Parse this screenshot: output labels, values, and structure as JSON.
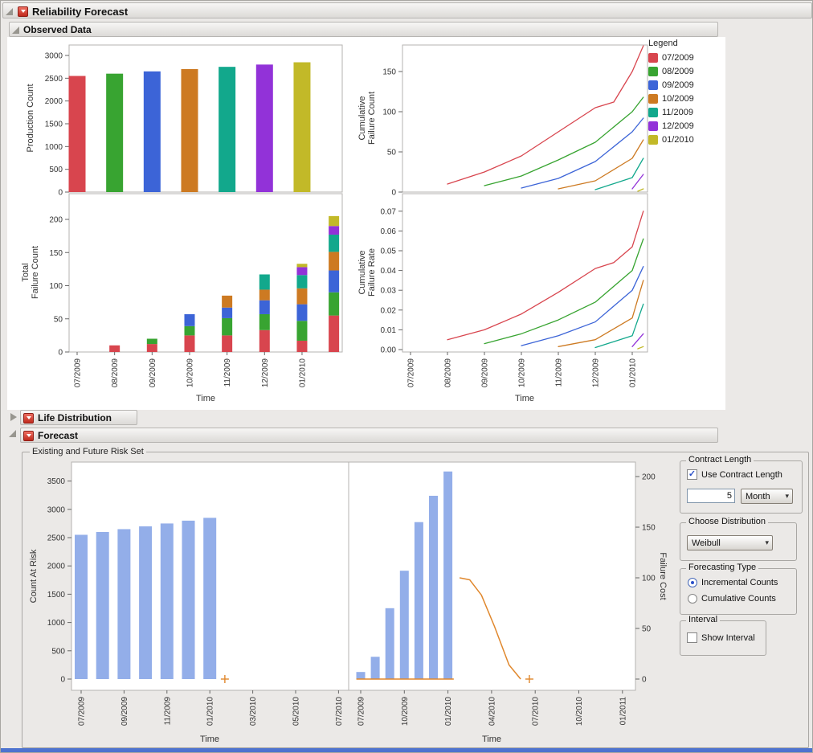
{
  "window": {
    "title": "Reliability Forecast",
    "bottom_bar_color": "#4e73cf"
  },
  "headers": {
    "reliability": "Reliability Forecast",
    "observed": "Observed Data",
    "life": "Life Distribution",
    "forecast": "Forecast",
    "risk_set": "Existing and Future Risk Set"
  },
  "icons": {
    "checkmark": "✓",
    "dropdown_arrow": "▾"
  },
  "legend": {
    "title": "Legend",
    "entries": [
      {
        "label": "07/2009",
        "color": "#d8454e"
      },
      {
        "label": "08/2009",
        "color": "#38a431"
      },
      {
        "label": "09/2009",
        "color": "#3c64d7"
      },
      {
        "label": "10/2009",
        "color": "#cd7a22"
      },
      {
        "label": "11/2009",
        "color": "#12a88c"
      },
      {
        "label": "12/2009",
        "color": "#9232d8"
      },
      {
        "label": "01/2010",
        "color": "#c2b928"
      }
    ]
  },
  "controls": {
    "contract": {
      "title": "Contract Length",
      "checkbox_label": "Use Contract Length",
      "checked": true,
      "value": "5",
      "unit": "Month"
    },
    "distribution": {
      "title": "Choose Distribution",
      "value": "Weibull"
    },
    "forecast_type": {
      "title": "Forecasting Type",
      "options": [
        {
          "label": "Incremental Counts",
          "selected": true
        },
        {
          "label": "Cumulative Counts",
          "selected": false
        }
      ]
    },
    "interval": {
      "title": "Interval",
      "checkbox_label": "Show Interval",
      "checked": false
    }
  },
  "chart_data": [
    {
      "id": "production-count",
      "type": "bar",
      "ylabel": "Production Count",
      "categories": [
        "07/2009",
        "08/2009",
        "09/2009",
        "10/2009",
        "11/2009",
        "12/2009",
        "01/2010"
      ],
      "values": [
        2550,
        2600,
        2650,
        2700,
        2750,
        2800,
        2850
      ],
      "colors": [
        "#d8454e",
        "#38a431",
        "#3c64d7",
        "#cd7a22",
        "#12a88c",
        "#9232d8",
        "#c2b928"
      ],
      "ylim": [
        0,
        3230
      ],
      "yticks": [
        {
          "v": 0,
          "label": "0"
        },
        {
          "v": 500,
          "label": "500"
        },
        {
          "v": 1000,
          "label": "1000"
        },
        {
          "v": 1500,
          "label": "1500"
        },
        {
          "v": 2000,
          "label": "2000"
        },
        {
          "v": 2500,
          "label": "2500"
        },
        {
          "v": 3000,
          "label": "3000"
        }
      ]
    },
    {
      "id": "cumulative-failure-count",
      "type": "line",
      "ylabel_lines": [
        "Cumulative",
        "Failure Count"
      ],
      "xlabel": "Time",
      "ylim": [
        0,
        183
      ],
      "yticks": [
        {
          "v": 0,
          "label": "0"
        },
        {
          "v": 50,
          "label": "50"
        },
        {
          "v": 100,
          "label": "100"
        },
        {
          "v": 150,
          "label": "150"
        }
      ],
      "xticks": [
        {
          "pos": 0,
          "label": "07/2009"
        },
        {
          "pos": 1,
          "label": "08/2009"
        },
        {
          "pos": 2,
          "label": "09/2009"
        },
        {
          "pos": 3,
          "label": "10/2009"
        },
        {
          "pos": 4,
          "label": "11/2009"
        },
        {
          "pos": 5,
          "label": "12/2009"
        },
        {
          "pos": 6,
          "label": "01/2010"
        }
      ],
      "series": [
        {
          "name": "07/2009",
          "color": "#d8454e",
          "x": [
            1,
            2,
            3,
            4,
            5,
            5.5,
            6,
            6.3
          ],
          "y": [
            10,
            25,
            45,
            75,
            105,
            112,
            150,
            182
          ]
        },
        {
          "name": "08/2009",
          "color": "#38a431",
          "x": [
            2,
            3,
            4,
            5,
            6,
            6.3
          ],
          "y": [
            8,
            20,
            40,
            62,
            100,
            118
          ]
        },
        {
          "name": "09/2009",
          "color": "#3c64d7",
          "x": [
            3,
            4,
            5,
            6,
            6.3
          ],
          "y": [
            5,
            17,
            38,
            75,
            92
          ]
        },
        {
          "name": "10/2009",
          "color": "#cd7a22",
          "x": [
            4,
            5,
            6,
            6.3
          ],
          "y": [
            4,
            14,
            42,
            65
          ]
        },
        {
          "name": "11/2009",
          "color": "#12a88c",
          "x": [
            5,
            6,
            6.3
          ],
          "y": [
            3,
            18,
            42
          ]
        },
        {
          "name": "12/2009",
          "color": "#9232d8",
          "x": [
            6,
            6.3
          ],
          "y": [
            4,
            22
          ]
        },
        {
          "name": "01/2010",
          "color": "#c2b928",
          "x": [
            6.15,
            6.3
          ],
          "y": [
            1,
            4
          ]
        }
      ]
    },
    {
      "id": "total-failure-count",
      "type": "stacked-bar",
      "ylabel_lines": [
        "Total",
        "Failure Count"
      ],
      "xlabel": "Time",
      "series_names": [
        "07/2009",
        "08/2009",
        "09/2009",
        "10/2009",
        "11/2009",
        "12/2009",
        "01/2010"
      ],
      "colors": [
        "#d8454e",
        "#38a431",
        "#3c64d7",
        "#cd7a22",
        "#12a88c",
        "#9232d8",
        "#c2b928"
      ],
      "ylim": [
        0,
        238
      ],
      "yticks": [
        {
          "v": 0,
          "label": "0"
        },
        {
          "v": 50,
          "label": "50"
        },
        {
          "v": 100,
          "label": "100"
        },
        {
          "v": 150,
          "label": "150"
        },
        {
          "v": 200,
          "label": "200"
        }
      ],
      "xticks": [
        {
          "pos": 0,
          "label": "07/2009"
        },
        {
          "pos": 1,
          "label": "08/2009"
        },
        {
          "pos": 2,
          "label": "09/2009"
        },
        {
          "pos": 3,
          "label": "10/2009"
        },
        {
          "pos": 4,
          "label": "11/2009"
        },
        {
          "pos": 5,
          "label": "12/2009"
        },
        {
          "pos": 6,
          "label": "01/2010"
        }
      ],
      "bars": [
        {
          "x": 1,
          "values": [
            10,
            0,
            0,
            0,
            0,
            0,
            0
          ]
        },
        {
          "x": 2,
          "values": [
            12,
            8,
            0,
            0,
            0,
            0,
            0
          ]
        },
        {
          "x": 3,
          "values": [
            25,
            14,
            18,
            0,
            0,
            0,
            0
          ]
        },
        {
          "x": 4,
          "values": [
            25,
            26,
            16,
            18,
            0,
            0,
            0
          ]
        },
        {
          "x": 5,
          "values": [
            33,
            24,
            21,
            16,
            23,
            0,
            0
          ]
        },
        {
          "x": 6,
          "values": [
            17,
            30,
            25,
            24,
            20,
            12,
            5
          ]
        },
        {
          "x": 6.85,
          "values": [
            55,
            35,
            33,
            28,
            26,
            13,
            15
          ]
        }
      ]
    },
    {
      "id": "cumulative-failure-rate",
      "type": "line",
      "ylabel_lines": [
        "Cumulative",
        "Failure Rate"
      ],
      "xlabel": "Time",
      "ylim": [
        0,
        0.0788
      ],
      "yticks": [
        {
          "v": 0,
          "label": "0.00"
        },
        {
          "v": 0.01,
          "label": "0.01"
        },
        {
          "v": 0.02,
          "label": "0.02"
        },
        {
          "v": 0.03,
          "label": "0.03"
        },
        {
          "v": 0.04,
          "label": "0.04"
        },
        {
          "v": 0.05,
          "label": "0.05"
        },
        {
          "v": 0.06,
          "label": "0.06"
        },
        {
          "v": 0.07,
          "label": "0.07"
        }
      ],
      "xticks": [
        {
          "pos": 0,
          "label": "07/2009"
        },
        {
          "pos": 1,
          "label": "08/2009"
        },
        {
          "pos": 2,
          "label": "09/2009"
        },
        {
          "pos": 3,
          "label": "10/2009"
        },
        {
          "pos": 4,
          "label": "11/2009"
        },
        {
          "pos": 5,
          "label": "12/2009"
        },
        {
          "pos": 6,
          "label": "01/2010"
        }
      ],
      "series": [
        {
          "name": "07/2009",
          "color": "#d8454e",
          "x": [
            1,
            2,
            3,
            4,
            5,
            5.5,
            6,
            6.3
          ],
          "y": [
            0.005,
            0.01,
            0.018,
            0.029,
            0.041,
            0.044,
            0.052,
            0.07
          ]
        },
        {
          "name": "08/2009",
          "color": "#38a431",
          "x": [
            2,
            3,
            4,
            5,
            6,
            6.3
          ],
          "y": [
            0.003,
            0.008,
            0.015,
            0.024,
            0.04,
            0.056
          ]
        },
        {
          "name": "09/2009",
          "color": "#3c64d7",
          "x": [
            3,
            4,
            5,
            6,
            6.3
          ],
          "y": [
            0.002,
            0.007,
            0.014,
            0.03,
            0.042
          ]
        },
        {
          "name": "10/2009",
          "color": "#cd7a22",
          "x": [
            4,
            5,
            6,
            6.3
          ],
          "y": [
            0.0015,
            0.005,
            0.016,
            0.035
          ]
        },
        {
          "name": "11/2009",
          "color": "#12a88c",
          "x": [
            5,
            6,
            6.3
          ],
          "y": [
            0.001,
            0.007,
            0.023
          ]
        },
        {
          "name": "12/2009",
          "color": "#9232d8",
          "x": [
            6,
            6.3
          ],
          "y": [
            0.0015,
            0.008
          ]
        },
        {
          "name": "01/2010",
          "color": "#c2b928",
          "x": [
            6.15,
            6.3
          ],
          "y": [
            0.0004,
            0.0015
          ]
        }
      ]
    },
    {
      "id": "count-at-risk",
      "type": "bar",
      "ylabel": "Count At Risk",
      "xlabel": "Time",
      "bar_color": "#93aee9",
      "x": [
        0,
        1,
        2,
        3,
        4,
        5,
        6
      ],
      "values": [
        2550,
        2600,
        2650,
        2700,
        2750,
        2800,
        2850
      ],
      "ylim": [
        0,
        3840
      ],
      "yticks": [
        {
          "v": 0,
          "label": "0"
        },
        {
          "v": 500,
          "label": "500"
        },
        {
          "v": 1000,
          "label": "1000"
        },
        {
          "v": 1500,
          "label": "1500"
        },
        {
          "v": 2000,
          "label": "2000"
        },
        {
          "v": 2500,
          "label": "2500"
        },
        {
          "v": 3000,
          "label": "3000"
        },
        {
          "v": 3500,
          "label": "3500"
        }
      ],
      "xticks": [
        {
          "pos": 0,
          "label": "07/2009"
        },
        {
          "pos": 2,
          "label": "09/2009"
        },
        {
          "pos": 4,
          "label": "11/2009"
        },
        {
          "pos": 6,
          "label": "01/2010"
        },
        {
          "pos": 8,
          "label": "03/2010"
        },
        {
          "pos": 10,
          "label": "05/2010"
        },
        {
          "pos": 12,
          "label": "07/2010"
        }
      ],
      "marker": {
        "x": 6.7,
        "y": 0,
        "color": "#e0872c",
        "shape": "plus"
      }
    },
    {
      "id": "failure-cost",
      "type": "bar-line",
      "ylabel": "Failure Cost",
      "xlabel": "Time",
      "bar_color": "#93aee9",
      "x": [
        0,
        1,
        2,
        3,
        4,
        5,
        6
      ],
      "values": [
        7,
        22,
        70,
        107,
        155,
        181,
        205
      ],
      "ylim": [
        0,
        213
      ],
      "yticks": [
        {
          "v": 0,
          "label": "0"
        },
        {
          "v": 50,
          "label": "50"
        },
        {
          "v": 100,
          "label": "100"
        },
        {
          "v": 150,
          "label": "150"
        },
        {
          "v": 200,
          "label": "200"
        }
      ],
      "xticks": [
        {
          "pos": 0,
          "label": "07/2009"
        },
        {
          "pos": 3,
          "label": "10/2009"
        },
        {
          "pos": 6,
          "label": "01/2010"
        },
        {
          "pos": 9,
          "label": "04/2010"
        },
        {
          "pos": 12,
          "label": "07/2010"
        },
        {
          "pos": 15,
          "label": "10/2010"
        },
        {
          "pos": 18,
          "label": "01/2011"
        }
      ],
      "line": {
        "color": "#e0872c",
        "segments": [
          {
            "x": [
              -0.3,
              6.4
            ],
            "y": [
              0,
              0
            ]
          },
          {
            "x": [
              6.8,
              7.5,
              8.3,
              9.2,
              10.2,
              11.0
            ],
            "y": [
              100,
              98,
              83,
              52,
              14,
              0
            ]
          }
        ]
      },
      "marker": {
        "x": 11.6,
        "y": 0,
        "color": "#e0872c",
        "shape": "plus"
      }
    }
  ]
}
